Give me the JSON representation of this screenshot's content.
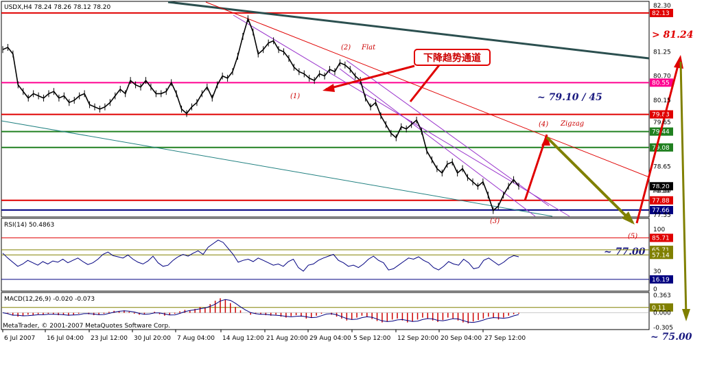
{
  "panels": {
    "price_header": "USDX,H4  78.24 78.26 78.12 78.20",
    "rsi_header": "RSI(14) 50.4863",
    "macd_header": "MACD(12,26,9) -0.020 -0.073",
    "copyright": "MetaTrader, © 2001-2007 MetaQuotes Software Corp."
  },
  "annotations": {
    "channel_label": "下降趋势通道",
    "target_high": "> 81.24",
    "resistance": "~ 79.10 / 45",
    "rsi_target": "~ 77.00",
    "final_target": "~ 75.00",
    "wave1": "(1)",
    "wave2": "(2)",
    "flat": "Flat",
    "wave3": "(3)",
    "wave4": "(4)",
    "zigzag": "Zigzag",
    "wave5": "(5)"
  },
  "colors": {
    "red": "#e00000",
    "magenta": "#ff0090",
    "green": "#208020",
    "navy": "#000080",
    "olive": "#808000",
    "violet": "#9933cc",
    "teal": "#208080",
    "macd_hist": "#cc0000",
    "rsi_line": "#000080"
  },
  "chart_data": {
    "type": "line",
    "symbol": "USDX",
    "timeframe": "H4",
    "ohlc_last": {
      "open": 78.24,
      "high": 78.26,
      "low": 78.12,
      "close": 78.2
    },
    "x_labels": [
      "6 Jul 2007",
      "16 Jul 04:00",
      "23 Jul 12:00",
      "30 Jul 20:00",
      "7 Aug 04:00",
      "14 Aug 12:00",
      "21 Aug 20:00",
      "29 Aug 04:00",
      "5 Sep 12:00",
      "12 Sep 20:00",
      "20 Sep 04:00",
      "27 Sep 12:00"
    ],
    "price_axis": {
      "ylim": [
        77.55,
        82.3
      ],
      "ticks": [
        82.3,
        81.25,
        80.7,
        80.15,
        79.65,
        78.65,
        78.1,
        77.55
      ]
    },
    "price_series": [
      81.3,
      81.35,
      81.2,
      80.5,
      80.35,
      80.2,
      80.3,
      80.25,
      80.2,
      80.3,
      80.35,
      80.2,
      80.25,
      80.1,
      80.15,
      80.25,
      80.3,
      80.05,
      80.0,
      79.95,
      80.0,
      80.1,
      80.25,
      80.4,
      80.3,
      80.6,
      80.5,
      80.45,
      80.6,
      80.45,
      80.3,
      80.3,
      80.35,
      80.55,
      80.3,
      79.95,
      79.85,
      80.0,
      80.1,
      80.3,
      80.45,
      80.2,
      80.5,
      80.7,
      80.65,
      80.8,
      81.15,
      81.6,
      82.0,
      81.7,
      81.2,
      81.3,
      81.45,
      81.5,
      81.3,
      81.25,
      81.1,
      80.9,
      80.8,
      80.75,
      80.65,
      80.6,
      80.75,
      80.7,
      80.85,
      80.8,
      81.0,
      80.95,
      80.85,
      80.7,
      80.6,
      80.2,
      80.0,
      80.1,
      79.8,
      79.6,
      79.4,
      79.3,
      79.55,
      79.5,
      79.6,
      79.7,
      79.45,
      79.0,
      78.8,
      78.6,
      78.5,
      78.7,
      78.75,
      78.5,
      78.6,
      78.4,
      78.3,
      78.2,
      78.3,
      78.0,
      77.65,
      77.75,
      78.0,
      78.2,
      78.35,
      78.2
    ],
    "levels": [
      {
        "value": 82.13,
        "label": "82.13",
        "color": "red"
      },
      {
        "value": 80.55,
        "label": "80.55",
        "color": "magenta"
      },
      {
        "value": 79.83,
        "label": "79.83",
        "color": "red"
      },
      {
        "value": 79.44,
        "label": "79.44",
        "color": "green"
      },
      {
        "value": 79.08,
        "label": "79.08",
        "color": "green"
      },
      {
        "value": 78.2,
        "label": "78.20",
        "color": "black"
      },
      {
        "value": 77.88,
        "label": "77.88",
        "color": "red"
      },
      {
        "value": 77.66,
        "label": "77.66",
        "color": "navy"
      }
    ],
    "price_tags": {
      "secondary": "78.10"
    },
    "rsi": {
      "period": 14,
      "value": 50.4863,
      "ylim": [
        0,
        100
      ],
      "ticks": [
        100,
        30,
        0
      ],
      "levels": [
        85.71,
        65.71,
        57.14,
        16.19
      ],
      "series": [
        60,
        52,
        45,
        38,
        42,
        48,
        44,
        40,
        46,
        42,
        47,
        45,
        50,
        44,
        48,
        52,
        46,
        41,
        44,
        50,
        58,
        62,
        56,
        54,
        52,
        57,
        50,
        45,
        42,
        47,
        55,
        44,
        38,
        40,
        48,
        54,
        58,
        55,
        60,
        64,
        58,
        70,
        76,
        82,
        78,
        68,
        58,
        45,
        48,
        50,
        46,
        52,
        48,
        44,
        40,
        42,
        38,
        46,
        50,
        36,
        30,
        40,
        42,
        48,
        52,
        55,
        58,
        48,
        44,
        38,
        40,
        36,
        42,
        50,
        55,
        48,
        44,
        32,
        34,
        40,
        46,
        52,
        50,
        54,
        48,
        44,
        36,
        32,
        38,
        46,
        42,
        40,
        50,
        44,
        34,
        36,
        48,
        52,
        46,
        40,
        45,
        52,
        56,
        54
      ]
    },
    "macd": {
      "fast": 12,
      "slow": 26,
      "signal": 9,
      "main": -0.02,
      "signal_value": -0.073,
      "ylim": [
        -0.305,
        0.363
      ],
      "ticks": [
        0.363,
        0.0,
        -0.305
      ],
      "levels": [
        0.11
      ],
      "histogram": [
        0.0,
        -0.02,
        -0.05,
        -0.08,
        -0.06,
        -0.04,
        -0.05,
        -0.03,
        -0.04,
        -0.02,
        -0.03,
        -0.05,
        -0.04,
        -0.06,
        -0.04,
        -0.02,
        0.0,
        -0.03,
        -0.05,
        -0.04,
        -0.02,
        0.02,
        0.04,
        0.03,
        0.05,
        0.02,
        -0.02,
        -0.04,
        -0.03,
        0.0,
        0.02,
        -0.03,
        -0.06,
        -0.05,
        -0.02,
        0.03,
        0.06,
        0.05,
        0.08,
        0.12,
        0.1,
        0.18,
        0.25,
        0.3,
        0.27,
        0.2,
        0.12,
        0.05,
        0.0,
        -0.04,
        -0.02,
        -0.03,
        -0.05,
        -0.06,
        -0.04,
        -0.08,
        -0.1,
        -0.07,
        -0.05,
        -0.08,
        -0.12,
        -0.1,
        -0.06,
        -0.02,
        0.0,
        -0.04,
        -0.08,
        -0.12,
        -0.16,
        -0.14,
        -0.1,
        -0.06,
        -0.09,
        -0.13,
        -0.17,
        -0.2,
        -0.18,
        -0.14,
        -0.12,
        -0.16,
        -0.2,
        -0.18,
        -0.14,
        -0.1,
        -0.12,
        -0.16,
        -0.19,
        -0.15,
        -0.1,
        -0.12,
        -0.16,
        -0.2,
        -0.22,
        -0.18,
        -0.15,
        -0.12,
        -0.08,
        -0.1,
        -0.14,
        -0.1,
        -0.06,
        -0.03,
        -0.02
      ]
    }
  }
}
